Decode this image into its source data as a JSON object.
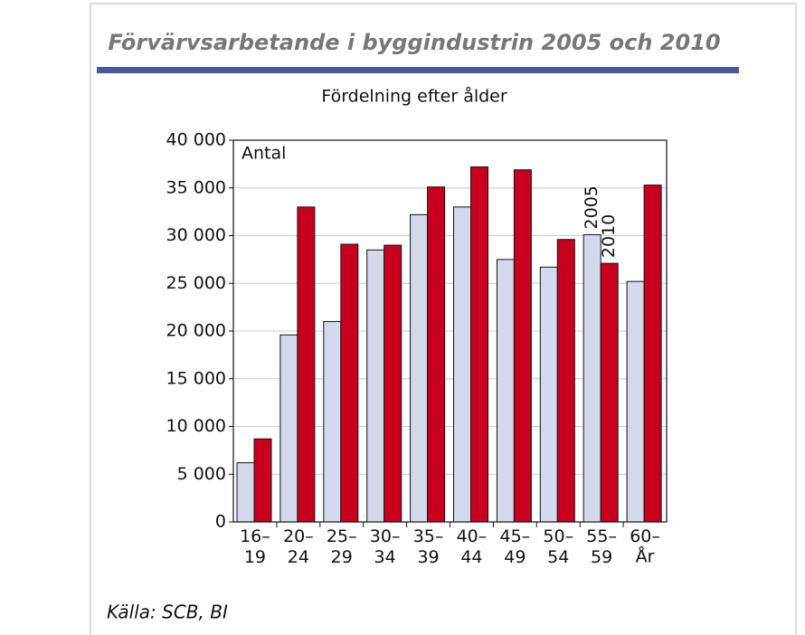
{
  "chart_data": {
    "type": "bar",
    "title": "Förvärvsarbetande i byggindustrin 2005 och 2010",
    "subtitle": "Fördelning efter ålder",
    "y_label": "Antal",
    "x_label": "År",
    "source": "Källa: SCB, BI",
    "categories": [
      "16–19",
      "20–24",
      "25–29",
      "30–34",
      "35–39",
      "40–44",
      "45–49",
      "50–54",
      "55–59",
      "60–"
    ],
    "series": [
      {
        "name": "2005",
        "color": "#d3d8ec",
        "values": [
          6200,
          19600,
          21000,
          28500,
          32200,
          33000,
          27500,
          26700,
          30100,
          25200
        ]
      },
      {
        "name": "2010",
        "color": "#c8001e",
        "values": [
          8700,
          33000,
          29100,
          29000,
          35100,
          37200,
          36900,
          29600,
          27100,
          35300
        ]
      }
    ],
    "ylim": [
      0,
      40000
    ],
    "yticks": [
      0,
      {
        "value": 5000,
        "label": "5 000"
      },
      {
        "value": 10000,
        "label": "10 000"
      },
      {
        "value": 15000,
        "label": "15 000"
      },
      {
        "value": 20000,
        "label": "20 000"
      },
      {
        "value": 25000,
        "label": "25 000"
      },
      {
        "value": 30000,
        "label": "30 000"
      },
      {
        "value": 35000,
        "label": "35 000"
      },
      {
        "value": 40000,
        "label": "40 000"
      }
    ],
    "grid": true
  }
}
